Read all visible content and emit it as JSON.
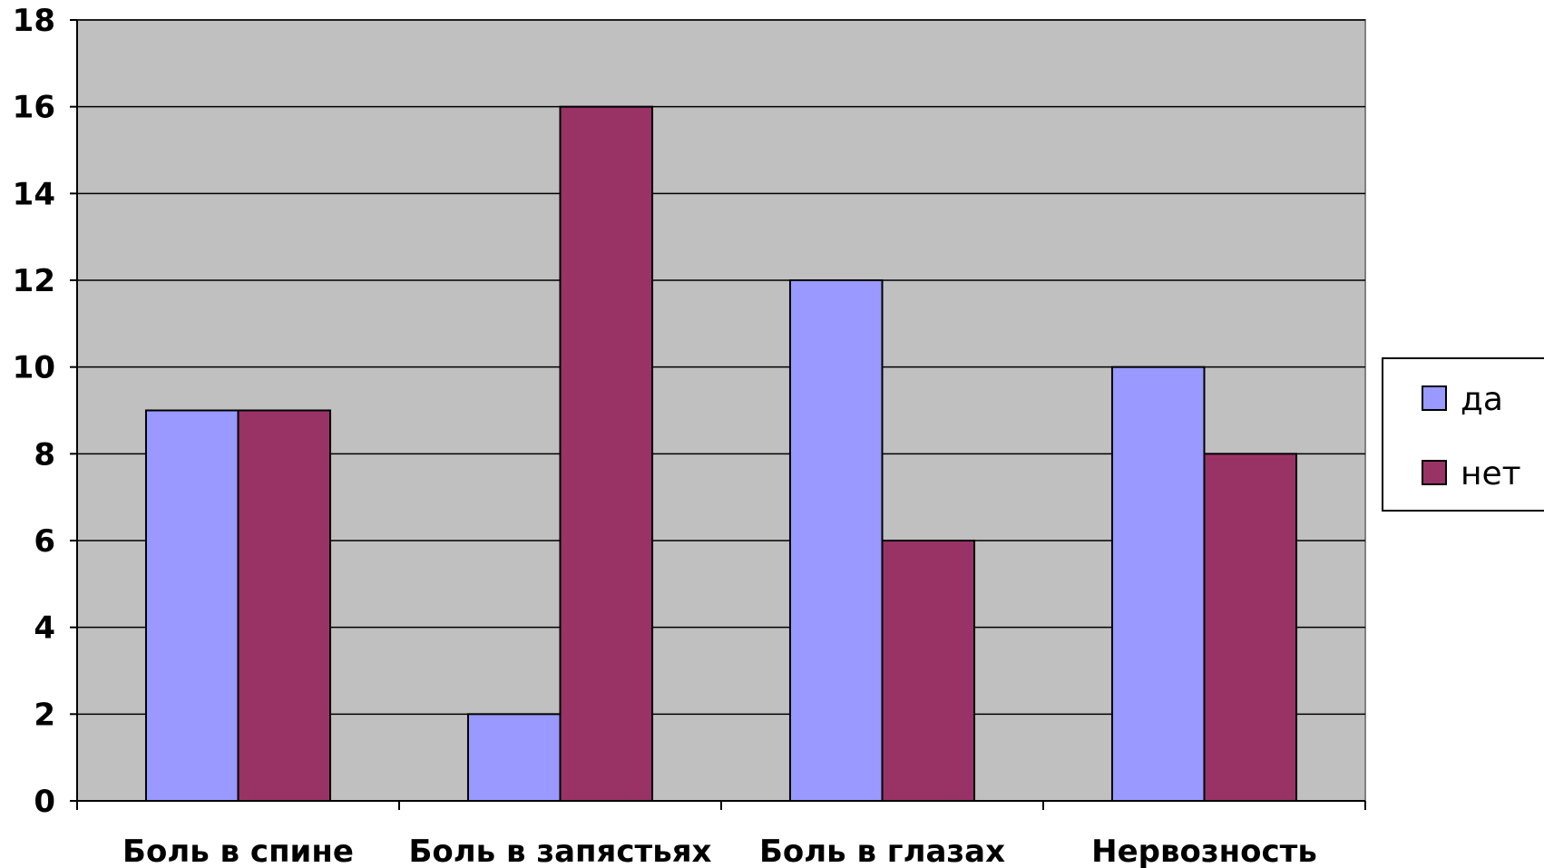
{
  "chart_data": {
    "type": "bar",
    "categories": [
      "Боль в спине",
      "Боль в запястьях",
      "Боль в глазах",
      "Нервозность"
    ],
    "series": [
      {
        "name": "да",
        "values": [
          9,
          2,
          12,
          10
        ],
        "color": "#9999FF"
      },
      {
        "name": "нет",
        "values": [
          9,
          16,
          6,
          8
        ],
        "color": "#993366"
      }
    ],
    "ylim": [
      0,
      18
    ],
    "yticks": [
      0,
      2,
      4,
      6,
      8,
      10,
      12,
      14,
      16,
      18
    ],
    "grid": true,
    "plot_background": "#C0C0C0",
    "legend_position": "right",
    "title": "",
    "xlabel": "",
    "ylabel": ""
  }
}
